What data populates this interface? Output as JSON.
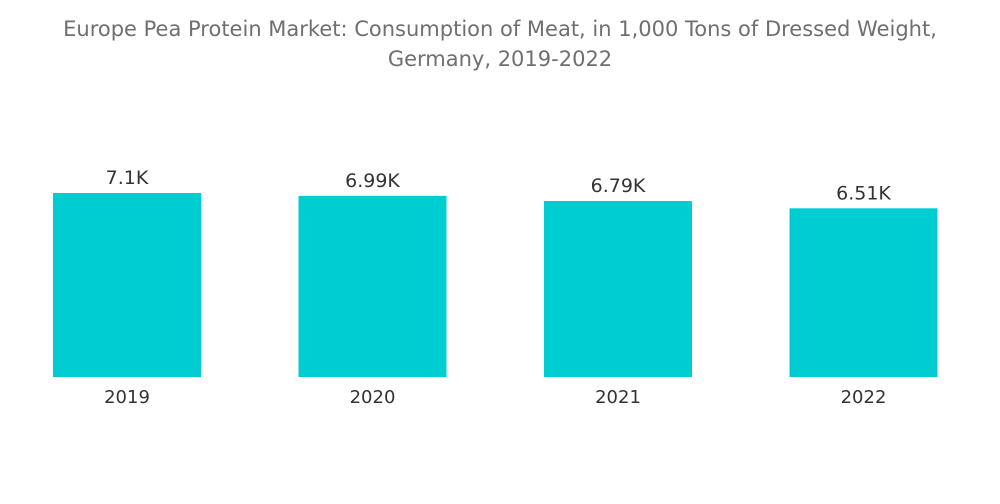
{
  "chart_data": {
    "type": "bar",
    "title": "Europe Pea Protein Market: Consumption of Meat, in 1,000 Tons of Dressed Weight,",
    "subtitle": "Germany, 2019-2022",
    "categories": [
      "2019",
      "2020",
      "2021",
      "2022"
    ],
    "values": [
      7.1,
      6.99,
      6.79,
      6.51
    ],
    "value_labels": [
      "7.1K",
      "6.99K",
      "6.79K",
      "6.51K"
    ],
    "xlabel": "",
    "ylabel": "",
    "ylim": [
      0,
      7.1
    ],
    "grid": false,
    "legend": "none",
    "bar_color": "#00cdd1"
  }
}
